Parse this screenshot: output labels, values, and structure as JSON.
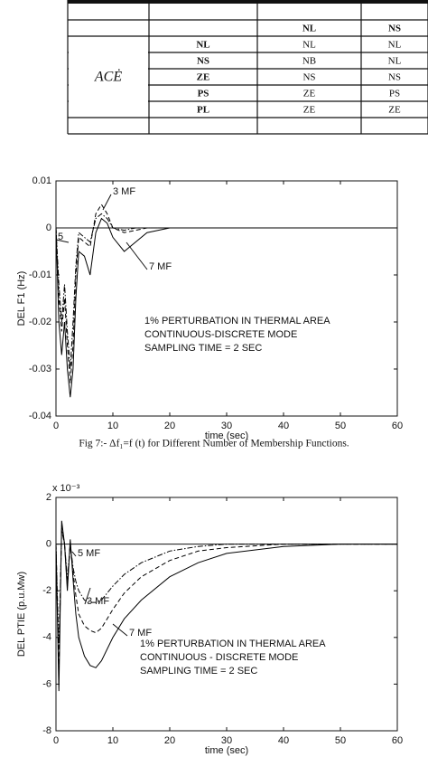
{
  "table": {
    "group_label": "ACĖ",
    "header": [
      "NL",
      "NS"
    ],
    "rows": [
      {
        "label": "NL",
        "cells": [
          "NL",
          "NL"
        ]
      },
      {
        "label": "NS",
        "cells": [
          "NB",
          "NL"
        ]
      },
      {
        "label": "ZE",
        "cells": [
          "NS",
          "NS"
        ]
      },
      {
        "label": "PS",
        "cells": [
          "ZE",
          "PS"
        ]
      },
      {
        "label": "PL",
        "cells": [
          "ZE",
          "ZE"
        ]
      }
    ]
  },
  "caption": "Fig 7:- Δf₁=f (t) for Different Number of Membership Functions.",
  "chart_data": [
    {
      "type": "line",
      "xlabel": "time (sec)",
      "ylabel": "DEL F1   (Hz)",
      "xlim": [
        0,
        60
      ],
      "xticks": [
        0,
        10,
        20,
        30,
        40,
        50,
        60
      ],
      "ylim": [
        -0.04,
        0.01
      ],
      "yticks": [
        -0.04,
        -0.03,
        -0.02,
        -0.01,
        0,
        0.01
      ],
      "x": [
        0,
        0.5,
        1,
        1.5,
        2,
        2.5,
        3,
        3.5,
        4,
        5,
        6,
        7,
        8,
        9,
        10,
        12,
        14,
        16,
        20,
        25,
        30,
        60
      ],
      "series": [
        {
          "color": "#000000",
          "dash": "solid",
          "values": [
            0,
            -0.02,
            -0.027,
            -0.02,
            -0.03,
            -0.036,
            -0.03,
            -0.015,
            -0.005,
            -0.006,
            -0.01,
            -0.001,
            0.002,
            0.001,
            -0.002,
            -0.005,
            -0.003,
            -0.001,
            0,
            0,
            0,
            0
          ]
        },
        {
          "color": "#000000",
          "dash": "dashed",
          "values": [
            0,
            -0.015,
            -0.022,
            -0.015,
            -0.025,
            -0.033,
            -0.025,
            -0.01,
            -0.002,
            -0.003,
            -0.004,
            0.003,
            0.005,
            0.003,
            0,
            -0.001,
            -0.0005,
            0,
            0,
            0,
            0,
            0
          ]
        },
        {
          "color": "#000000",
          "dash": "dashdot",
          "values": [
            0,
            -0.012,
            -0.02,
            -0.012,
            -0.022,
            -0.03,
            -0.02,
            -0.008,
            -0.001,
            -0.002,
            -0.003,
            0.002,
            0.003,
            0.002,
            0,
            -0.0005,
            0,
            0,
            0,
            0,
            0,
            0
          ]
        }
      ],
      "annotations": [
        "3 MF",
        "5",
        "7 MF"
      ],
      "notes": [
        "1% PERTURBATION IN THERMAL AREA",
        "CONTINUOUS-DISCRETE MODE",
        "SAMPLING TIME = 2 SEC"
      ]
    },
    {
      "type": "line",
      "xlabel": "time (sec)",
      "ylabel": "DEL PTIE   (p.u.Mw)",
      "multiplier": "x 10⁻³",
      "xlim": [
        0,
        60
      ],
      "xticks": [
        0,
        10,
        20,
        30,
        40,
        50,
        60
      ],
      "ylim": [
        -8,
        2
      ],
      "yticks": [
        -8,
        -6,
        -4,
        -2,
        0,
        2
      ],
      "x": [
        0,
        0.5,
        1,
        1.5,
        2,
        2.5,
        3,
        3.5,
        4,
        5,
        6,
        7,
        8,
        10,
        12,
        15,
        20,
        25,
        30,
        40,
        50,
        60
      ],
      "series": [
        {
          "color": "#000000",
          "dash": "solid",
          "values": [
            0,
            -6.3,
            1,
            0,
            -2,
            0.2,
            -1.5,
            -3,
            -4,
            -4.8,
            -5.2,
            -5.3,
            -5,
            -4,
            -3.2,
            -2.4,
            -1.4,
            -0.8,
            -0.4,
            -0.1,
            0,
            0
          ]
        },
        {
          "color": "#000000",
          "dash": "dashed",
          "values": [
            0,
            -5.5,
            0.8,
            0,
            -1.8,
            0,
            -1.2,
            -2.2,
            -3,
            -3.5,
            -3.7,
            -3.8,
            -3.6,
            -2.8,
            -2.1,
            -1.4,
            -0.7,
            -0.3,
            -0.15,
            0,
            0,
            0
          ]
        },
        {
          "color": "#000000",
          "dash": "dashdot",
          "values": [
            0,
            -4.5,
            0.6,
            0,
            -1.5,
            0,
            -1,
            -1.6,
            -2,
            -2.4,
            -2.5,
            -2.5,
            -2.4,
            -1.8,
            -1.3,
            -0.8,
            -0.3,
            -0.1,
            0,
            0,
            0,
            0
          ]
        }
      ],
      "annotations": [
        "5 MF",
        "3 MF",
        "7 MF"
      ],
      "notes": [
        "1% PERTURBATION IN THERMAL AREA",
        "CONTINUOUS - DISCRETE MODE",
        "SAMPLING TIME = 2 SEC"
      ]
    }
  ]
}
